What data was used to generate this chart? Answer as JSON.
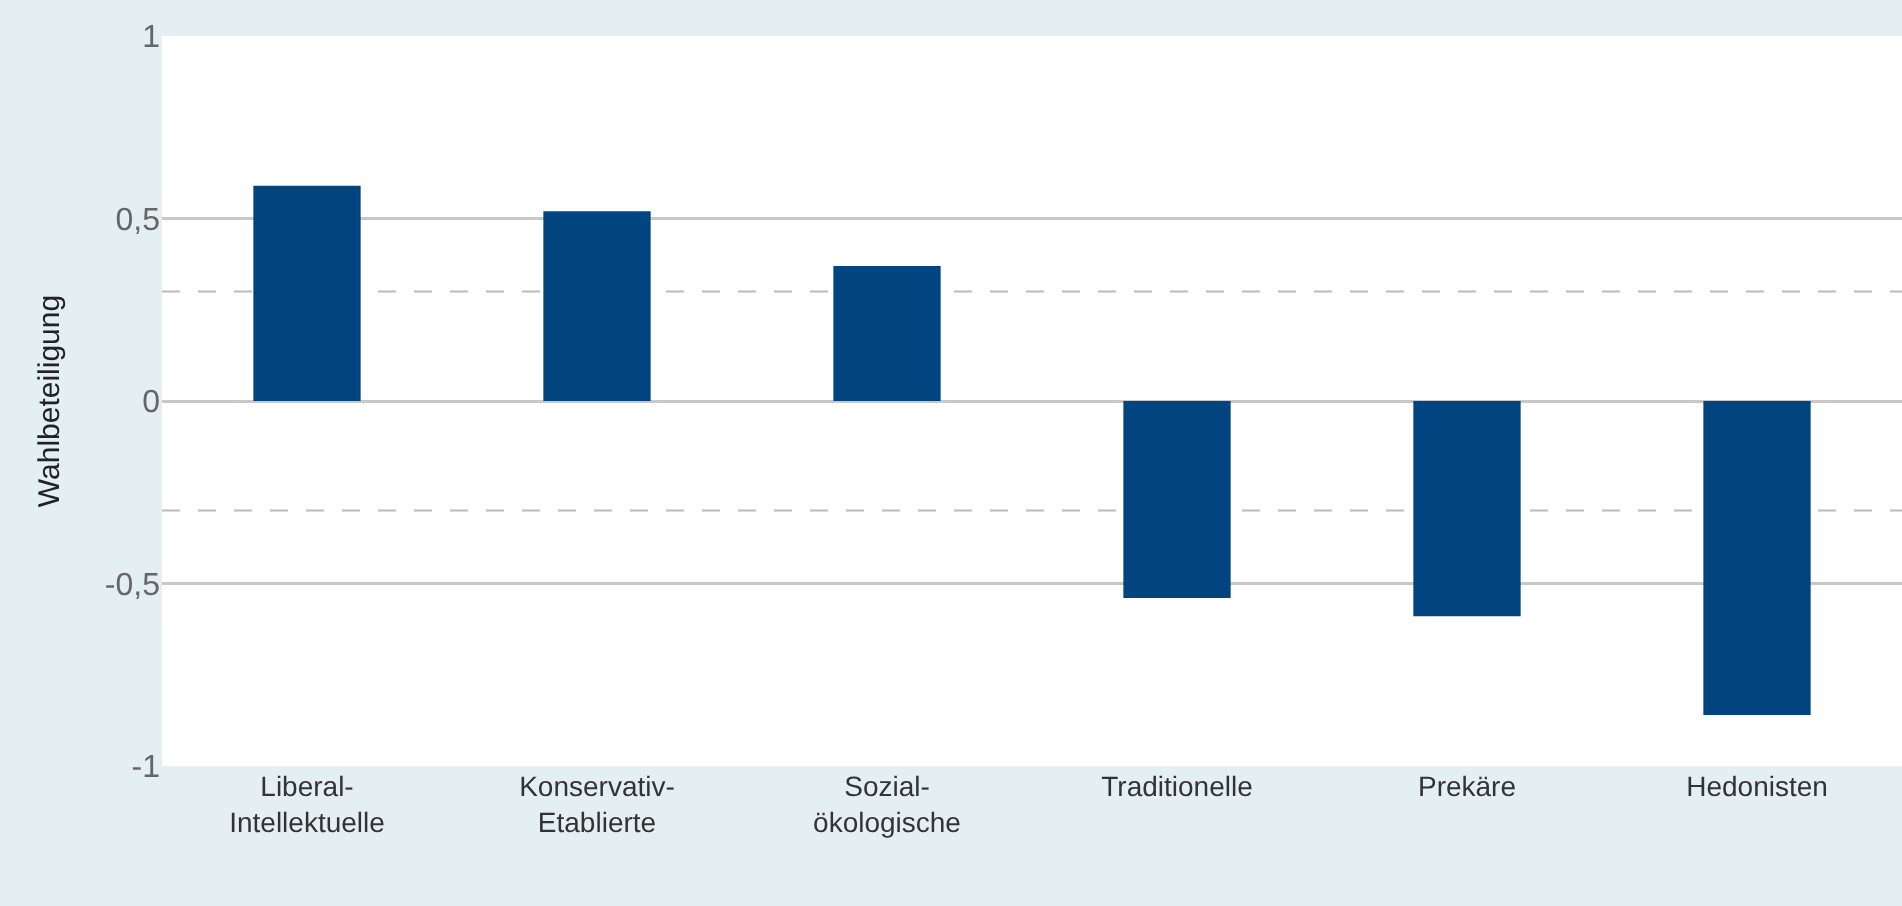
{
  "chart_data": {
    "type": "bar",
    "ylabel": "Wahlbeteiligung",
    "categories": [
      "Liberal-Intellektuelle",
      "Konservativ-Etablierte",
      "Sozial-ökologische",
      "Traditionelle",
      "Prekäre",
      "Hedonisten"
    ],
    "values": [
      0.59,
      0.52,
      0.37,
      -0.54,
      -0.59,
      -0.86
    ],
    "color": "#00457f",
    "ylim": [
      -1,
      1
    ],
    "yticks": [
      {
        "value": -1,
        "label": "-1"
      },
      {
        "value": -0.5,
        "label": "-0,5"
      },
      {
        "value": 0,
        "label": "0"
      },
      {
        "value": 0.5,
        "label": "0,5"
      },
      {
        "value": 1,
        "label": "1"
      }
    ],
    "grid": "y",
    "ref_lines": [
      {
        "axis": "y",
        "value": 0.3,
        "line_style": "dashed",
        "color": "#bbbbbb"
      },
      {
        "axis": "y",
        "value": -0.3,
        "line_style": "dashed",
        "color": "#bbbbbb"
      }
    ]
  }
}
